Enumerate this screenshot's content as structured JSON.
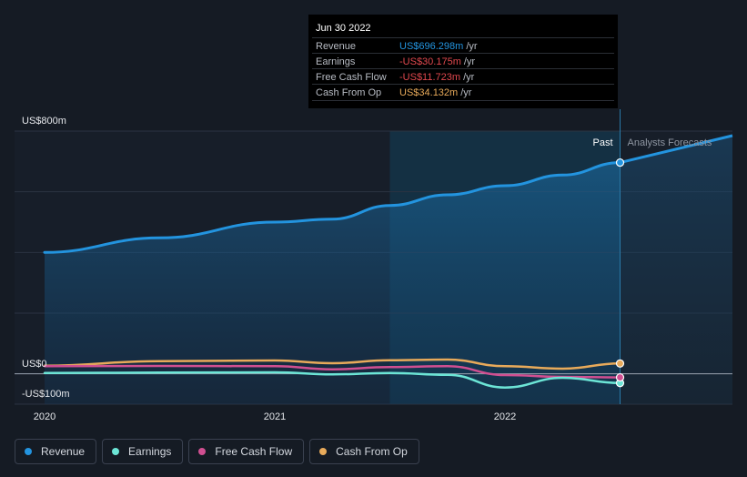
{
  "chart_data": {
    "type": "line",
    "title": "",
    "xlabel": "",
    "ylabel": "",
    "y_unit_labels": [
      "US$800m",
      "US$0",
      "-US$100m"
    ],
    "ylim": [
      -100,
      800
    ],
    "x_tick_labels": [
      "2020",
      "2021",
      "2022"
    ],
    "x_range": [
      2019.97,
      2023.0
    ],
    "divider_labels": {
      "past": "Past",
      "forecast": "Analysts Forecasts"
    },
    "divider_x": 2022.5,
    "series": [
      {
        "name": "Revenue",
        "color": "#2394df",
        "points": [
          [
            2020.0,
            400
          ],
          [
            2020.5,
            448
          ],
          [
            2021.0,
            500
          ],
          [
            2021.25,
            510
          ],
          [
            2021.5,
            555
          ],
          [
            2021.75,
            590
          ],
          [
            2022.0,
            620
          ],
          [
            2022.25,
            655
          ],
          [
            2022.5,
            696.298
          ]
        ]
      },
      {
        "name": "Analysts Forecast Revenue",
        "color": "#2394df",
        "points": [
          [
            2022.5,
            696.298
          ],
          [
            2023.0,
            785
          ]
        ]
      },
      {
        "name": "Earnings",
        "color": "#6ce5d6",
        "points": [
          [
            2020.0,
            3
          ],
          [
            2020.5,
            4
          ],
          [
            2021.0,
            5
          ],
          [
            2021.25,
            -2
          ],
          [
            2021.5,
            3
          ],
          [
            2021.75,
            -3
          ],
          [
            2022.0,
            -45
          ],
          [
            2022.25,
            -13
          ],
          [
            2022.5,
            -30.175
          ]
        ]
      },
      {
        "name": "Free Cash Flow",
        "color": "#d04f91",
        "points": [
          [
            2020.0,
            25
          ],
          [
            2020.5,
            26
          ],
          [
            2021.0,
            25
          ],
          [
            2021.25,
            15
          ],
          [
            2021.5,
            22
          ],
          [
            2021.75,
            25
          ],
          [
            2022.0,
            -4
          ],
          [
            2022.25,
            -10
          ],
          [
            2022.5,
            -11.723
          ]
        ]
      },
      {
        "name": "Cash From Op",
        "color": "#e8aa5a",
        "points": [
          [
            2020.0,
            27
          ],
          [
            2020.5,
            42
          ],
          [
            2021.0,
            44
          ],
          [
            2021.25,
            35
          ],
          [
            2021.5,
            45
          ],
          [
            2021.75,
            47
          ],
          [
            2022.0,
            25
          ],
          [
            2022.25,
            17
          ],
          [
            2022.5,
            34.132
          ]
        ]
      }
    ]
  },
  "tooltip": {
    "date": "Jun 30 2022",
    "rows": [
      {
        "label": "Revenue",
        "value": "US$696.298m",
        "unit": "/yr",
        "color": "#2394df"
      },
      {
        "label": "Earnings",
        "value": "-US$30.175m",
        "unit": "/yr",
        "color": "#e0484e"
      },
      {
        "label": "Free Cash Flow",
        "value": "-US$11.723m",
        "unit": "/yr",
        "color": "#e0484e"
      },
      {
        "label": "Cash From Op",
        "value": "US$34.132m",
        "unit": "/yr",
        "color": "#e8aa5a"
      }
    ]
  },
  "legend": [
    {
      "label": "Revenue",
      "color": "#2394df"
    },
    {
      "label": "Earnings",
      "color": "#6ce5d6"
    },
    {
      "label": "Free Cash Flow",
      "color": "#d04f91"
    },
    {
      "label": "Cash From Op",
      "color": "#e8aa5a"
    }
  ]
}
